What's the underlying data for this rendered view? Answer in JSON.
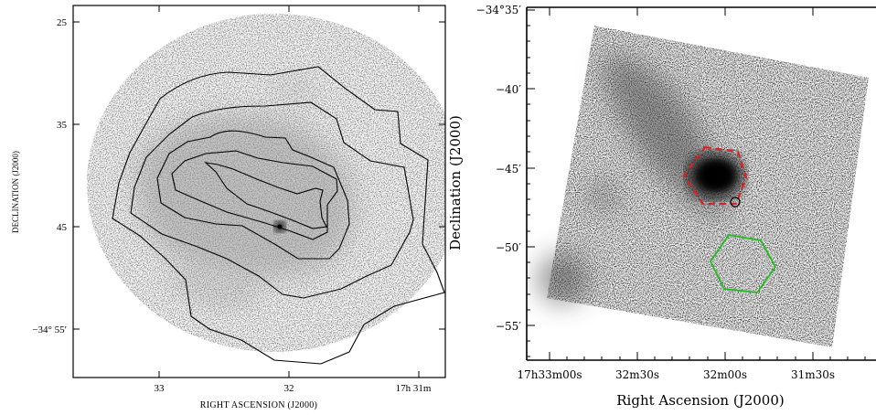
{
  "figures": [
    {
      "id": "left",
      "xlabel": "RIGHT ASCENSION (J2000)",
      "ylabel": "DECLINATION (J2000)",
      "x_ticks": [
        "33",
        "32",
        "17h 31m"
      ],
      "y_ticks": [
        "25",
        "35",
        "45",
        "−34° 55′"
      ]
    },
    {
      "id": "right",
      "xlabel": "Right Ascension (J2000)",
      "ylabel": "Declination (J2000)",
      "x_ticks": [
        "17h33m00s",
        "32m30s",
        "32m00s",
        "31m30s"
      ],
      "y_ticks": [
        "−34°35′",
        "−40′",
        "−45′",
        "−50′",
        "−55′"
      ],
      "overlays": {
        "source_region": {
          "shape": "hexagon",
          "style": "dashed",
          "color": "#e02020"
        },
        "background_region": {
          "shape": "hexagon",
          "style": "solid",
          "color": "#22bb22"
        },
        "point_marker": {
          "shape": "circle",
          "color": "#000000"
        }
      }
    }
  ]
}
